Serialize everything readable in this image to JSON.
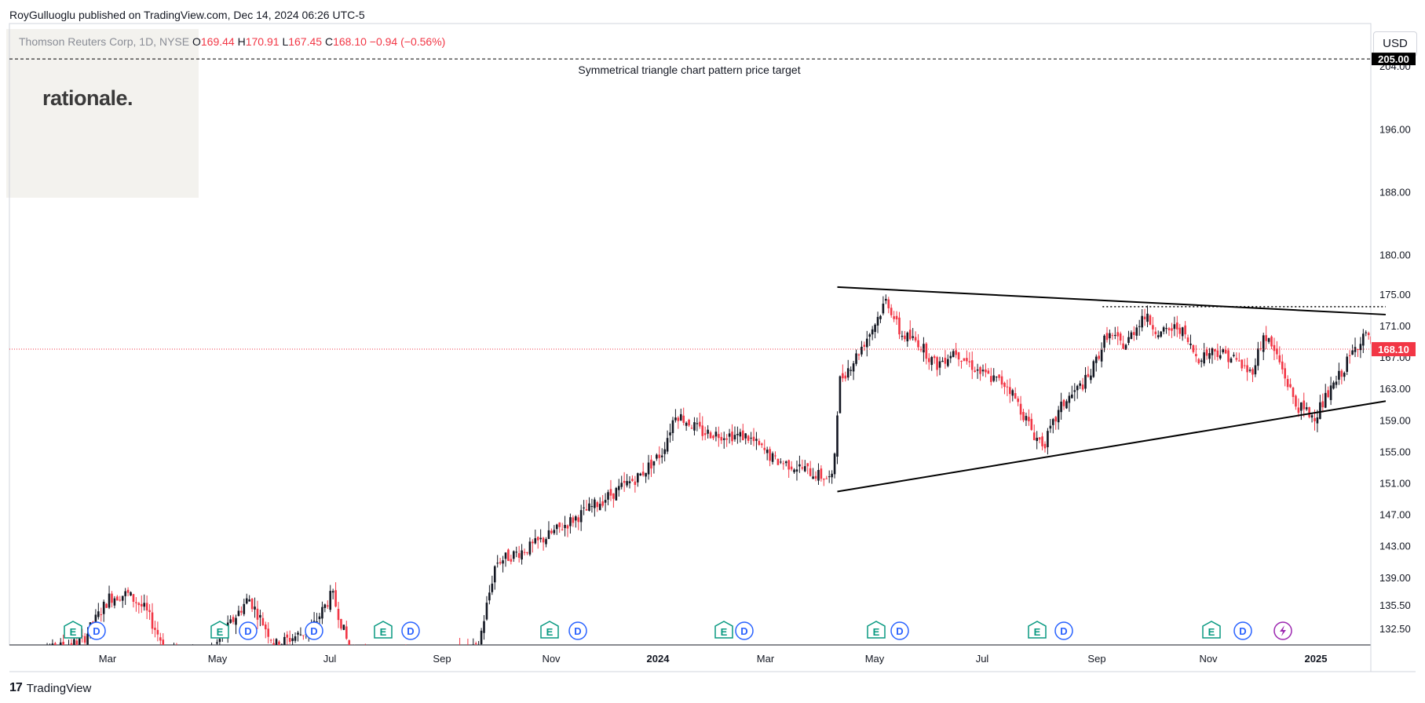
{
  "publisher": "RoyGulluoglu published on TradingView.com, Dec 14, 2024 06:26 UTC-5",
  "logo": "rationale.",
  "footer_brand": "TradingView",
  "currency": "USD",
  "legend": {
    "symbol": "Thomson Reuters Corp, 1D, NYSE",
    "o_key": "O",
    "o_val": "169.44",
    "h_key": "H",
    "h_val": "170.91",
    "l_key": "L",
    "l_val": "167.45",
    "c_key": "C",
    "c_val": "168.10",
    "change": "−0.94 (−0.56%)"
  },
  "colors": {
    "up": "#131722",
    "down": "#f23645",
    "price_line": "#f23645",
    "earnings": "#089981",
    "dividend": "#2962ff",
    "split": "#9c27b0"
  },
  "chart_data": {
    "type": "candlestick",
    "title": "",
    "ylim": [
      130.5,
      209.5
    ],
    "y_ticks": [
      132.5,
      135.5,
      139.0,
      143.0,
      147.0,
      151.0,
      155.0,
      159.0,
      163.0,
      167.0,
      171.0,
      175.0,
      180.0,
      188.0,
      196.0,
      204.0
    ],
    "x_ticks": [
      "Mar",
      "May",
      "Jul",
      "Sep",
      "Nov",
      "2024",
      "Mar",
      "May",
      "Jul",
      "Sep",
      "Nov",
      "2025"
    ],
    "last_price": 168.1,
    "last_price_label": "168.10",
    "target_price": 205.0,
    "target_label": "205.00",
    "annotation": "Symmetrical triangle chart pattern price target",
    "keypoints": [
      [
        0.0,
        129.0
      ],
      [
        6.0,
        131.0
      ],
      [
        9.0,
        136.5
      ],
      [
        11.0,
        137.0
      ],
      [
        13.0,
        135.0
      ],
      [
        15.5,
        129.5
      ],
      [
        20.0,
        129.0
      ],
      [
        24.5,
        136.5
      ],
      [
        27.5,
        130.5
      ],
      [
        31.5,
        132.5
      ],
      [
        33.8,
        137.0
      ],
      [
        36.0,
        129.0
      ],
      [
        44.0,
        128.5
      ],
      [
        50.0,
        130.0
      ],
      [
        52.0,
        141.0
      ],
      [
        56.0,
        143.0
      ],
      [
        60.0,
        146.0
      ],
      [
        64.0,
        149.0
      ],
      [
        68.0,
        152.0
      ],
      [
        70.5,
        155.0
      ],
      [
        72.0,
        160.0
      ],
      [
        75.0,
        157.5
      ],
      [
        80.0,
        157.0
      ],
      [
        83.0,
        154.0
      ],
      [
        86.0,
        153.0
      ],
      [
        88.0,
        152.0
      ],
      [
        89.5,
        151.5
      ],
      [
        90.2,
        164.0
      ],
      [
        92.0,
        167.0
      ],
      [
        94.0,
        171.0
      ],
      [
        95.5,
        174.5
      ],
      [
        97.0,
        170.0
      ],
      [
        99.0,
        169.0
      ],
      [
        101.0,
        166.0
      ],
      [
        103.0,
        168.0
      ],
      [
        106.0,
        165.0
      ],
      [
        109.0,
        163.5
      ],
      [
        112.0,
        157.0
      ],
      [
        113.0,
        156.0
      ],
      [
        115.0,
        161.0
      ],
      [
        118.0,
        164.5
      ],
      [
        120.0,
        170.0
      ],
      [
        122.0,
        168.5
      ],
      [
        124.0,
        172.5
      ],
      [
        126.0,
        170.0
      ],
      [
        128.0,
        171.0
      ],
      [
        130.0,
        167.0
      ],
      [
        132.0,
        168.0
      ],
      [
        134.0,
        167.0
      ],
      [
        136.0,
        165.0
      ],
      [
        137.5,
        170.0
      ],
      [
        139.0,
        167.0
      ],
      [
        141.0,
        161.0
      ],
      [
        143.0,
        159.5
      ],
      [
        145.0,
        163.0
      ],
      [
        147.0,
        167.0
      ],
      [
        148.5,
        170.0
      ],
      [
        150.0,
        168.1
      ]
    ],
    "triangle_upper": [
      [
        90.0,
        176.0
      ],
      [
        151.0,
        172.5
      ]
    ],
    "triangle_lower": [
      [
        90.0,
        150.0
      ],
      [
        151.0,
        161.5
      ]
    ],
    "resistance_dotted": [
      [
        119.5,
        173.5
      ],
      [
        151.0,
        173.5
      ]
    ]
  },
  "events": [
    {
      "type": "E",
      "x": 93
    },
    {
      "type": "D",
      "x": 123
    },
    {
      "type": "E",
      "x": 280
    },
    {
      "type": "D",
      "x": 316
    },
    {
      "type": "D",
      "x": 400
    },
    {
      "type": "E",
      "x": 488
    },
    {
      "type": "D",
      "x": 523
    },
    {
      "type": "E",
      "x": 700
    },
    {
      "type": "D",
      "x": 736
    },
    {
      "type": "E",
      "x": 922
    },
    {
      "type": "D",
      "x": 948
    },
    {
      "type": "E",
      "x": 1116
    },
    {
      "type": "D",
      "x": 1146
    },
    {
      "type": "E",
      "x": 1321
    },
    {
      "type": "D",
      "x": 1355
    },
    {
      "type": "E",
      "x": 1543
    },
    {
      "type": "D",
      "x": 1583
    },
    {
      "type": "S",
      "x": 1634
    }
  ]
}
